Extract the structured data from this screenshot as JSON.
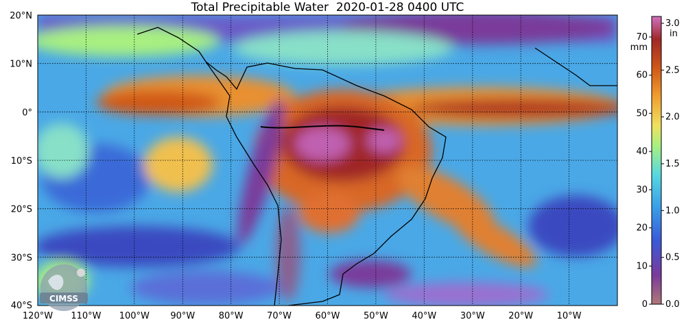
{
  "title": "Total Precipitable Water  2020-01-28 0400 UTC",
  "map": {
    "lon_range": [
      -120,
      0
    ],
    "lat_range": [
      -40,
      20
    ],
    "lon_ticks": [
      "120°W",
      "110°W",
      "100°W",
      "90°W",
      "80°W",
      "70°W",
      "60°W",
      "50°W",
      "40°W",
      "30°W",
      "20°W",
      "10°W"
    ],
    "lat_ticks": [
      "20°N",
      "10°N",
      "0°",
      "10°S",
      "20°S",
      "30°S",
      "40°S"
    ],
    "gridlines": true
  },
  "colorbar": {
    "left_unit": "mm",
    "right_unit": "in",
    "mm_ticks": [
      "0",
      "10",
      "20",
      "30",
      "40",
      "50",
      "60",
      "70"
    ],
    "in_ticks": [
      "0.0",
      "0.5",
      "1.0",
      "1.5",
      "2.0",
      "2.5",
      "3.0"
    ],
    "colors": [
      "#b07878",
      "#7a3a9a",
      "#3a5ad8",
      "#3aa0e8",
      "#58d8e0",
      "#a8f080",
      "#f0e060",
      "#f0a030",
      "#d05818",
      "#a02828",
      "#d070c0"
    ]
  },
  "logo": {
    "text": "CIMSS"
  }
}
